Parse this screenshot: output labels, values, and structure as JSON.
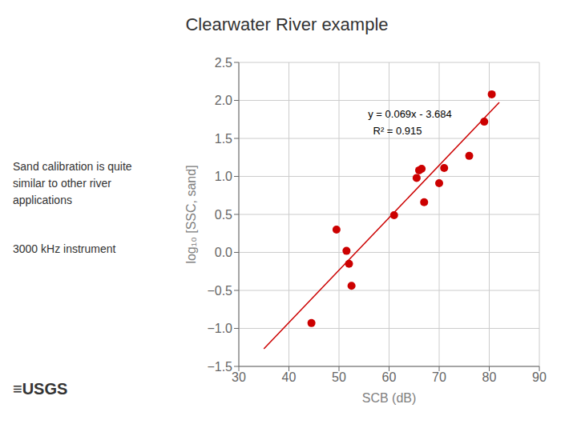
{
  "chart_data": {
    "type": "scatter",
    "title": "Clearwater River example",
    "x_label": "SCB (dB)",
    "y_label": "log₁₀ [SSC, sand]",
    "series": [
      {
        "type": "scatter",
        "color": "#cc0000",
        "marker": "circle",
        "x": [
          44.5,
          49.5,
          51.5,
          52.0,
          52.5,
          61.0,
          65.5,
          66.0,
          66.5,
          67.0,
          70.0,
          71.0,
          76.0,
          79.0,
          80.5
        ],
        "values": [
          -0.93,
          0.3,
          0.02,
          -0.15,
          -0.44,
          0.49,
          0.98,
          1.08,
          1.1,
          0.66,
          0.91,
          1.11,
          1.27,
          1.72,
          2.08
        ]
      },
      {
        "type": "line",
        "color": "#cc0000",
        "line_style": "solid",
        "x": [
          35,
          82
        ],
        "values": [
          -1.269,
          1.974
        ]
      }
    ],
    "xlim": [
      30,
      90
    ],
    "ylim": [
      -1.5,
      2.5
    ],
    "xticks": [
      30,
      40,
      50,
      60,
      70,
      80,
      90
    ],
    "yticks": [
      {
        "value": -1.5,
        "label": "−1.5"
      },
      {
        "value": -1.0,
        "label": "−1.0"
      },
      {
        "value": -0.5,
        "label": "−0.5"
      },
      {
        "value": 0.0,
        "label": "0.0"
      },
      0.5,
      {
        "value": 1.0,
        "label": "1.0"
      },
      1.5,
      {
        "value": 2.0,
        "label": "2.0"
      },
      2.5
    ],
    "grid": true,
    "annotations": [
      {
        "text": "y = 0.069x - 3.684",
        "x": 55,
        "y": 1.82
      },
      {
        "text": "R² = 0.915",
        "x": 56,
        "y": 1.6
      },
      {
        "text": "Sand calibration is quite"
      },
      {
        "text": "similar to other river"
      },
      {
        "text": "applications"
      },
      {
        "text": "3000 kHz instrument"
      },
      {
        "text": "≡USGS"
      }
    ]
  }
}
